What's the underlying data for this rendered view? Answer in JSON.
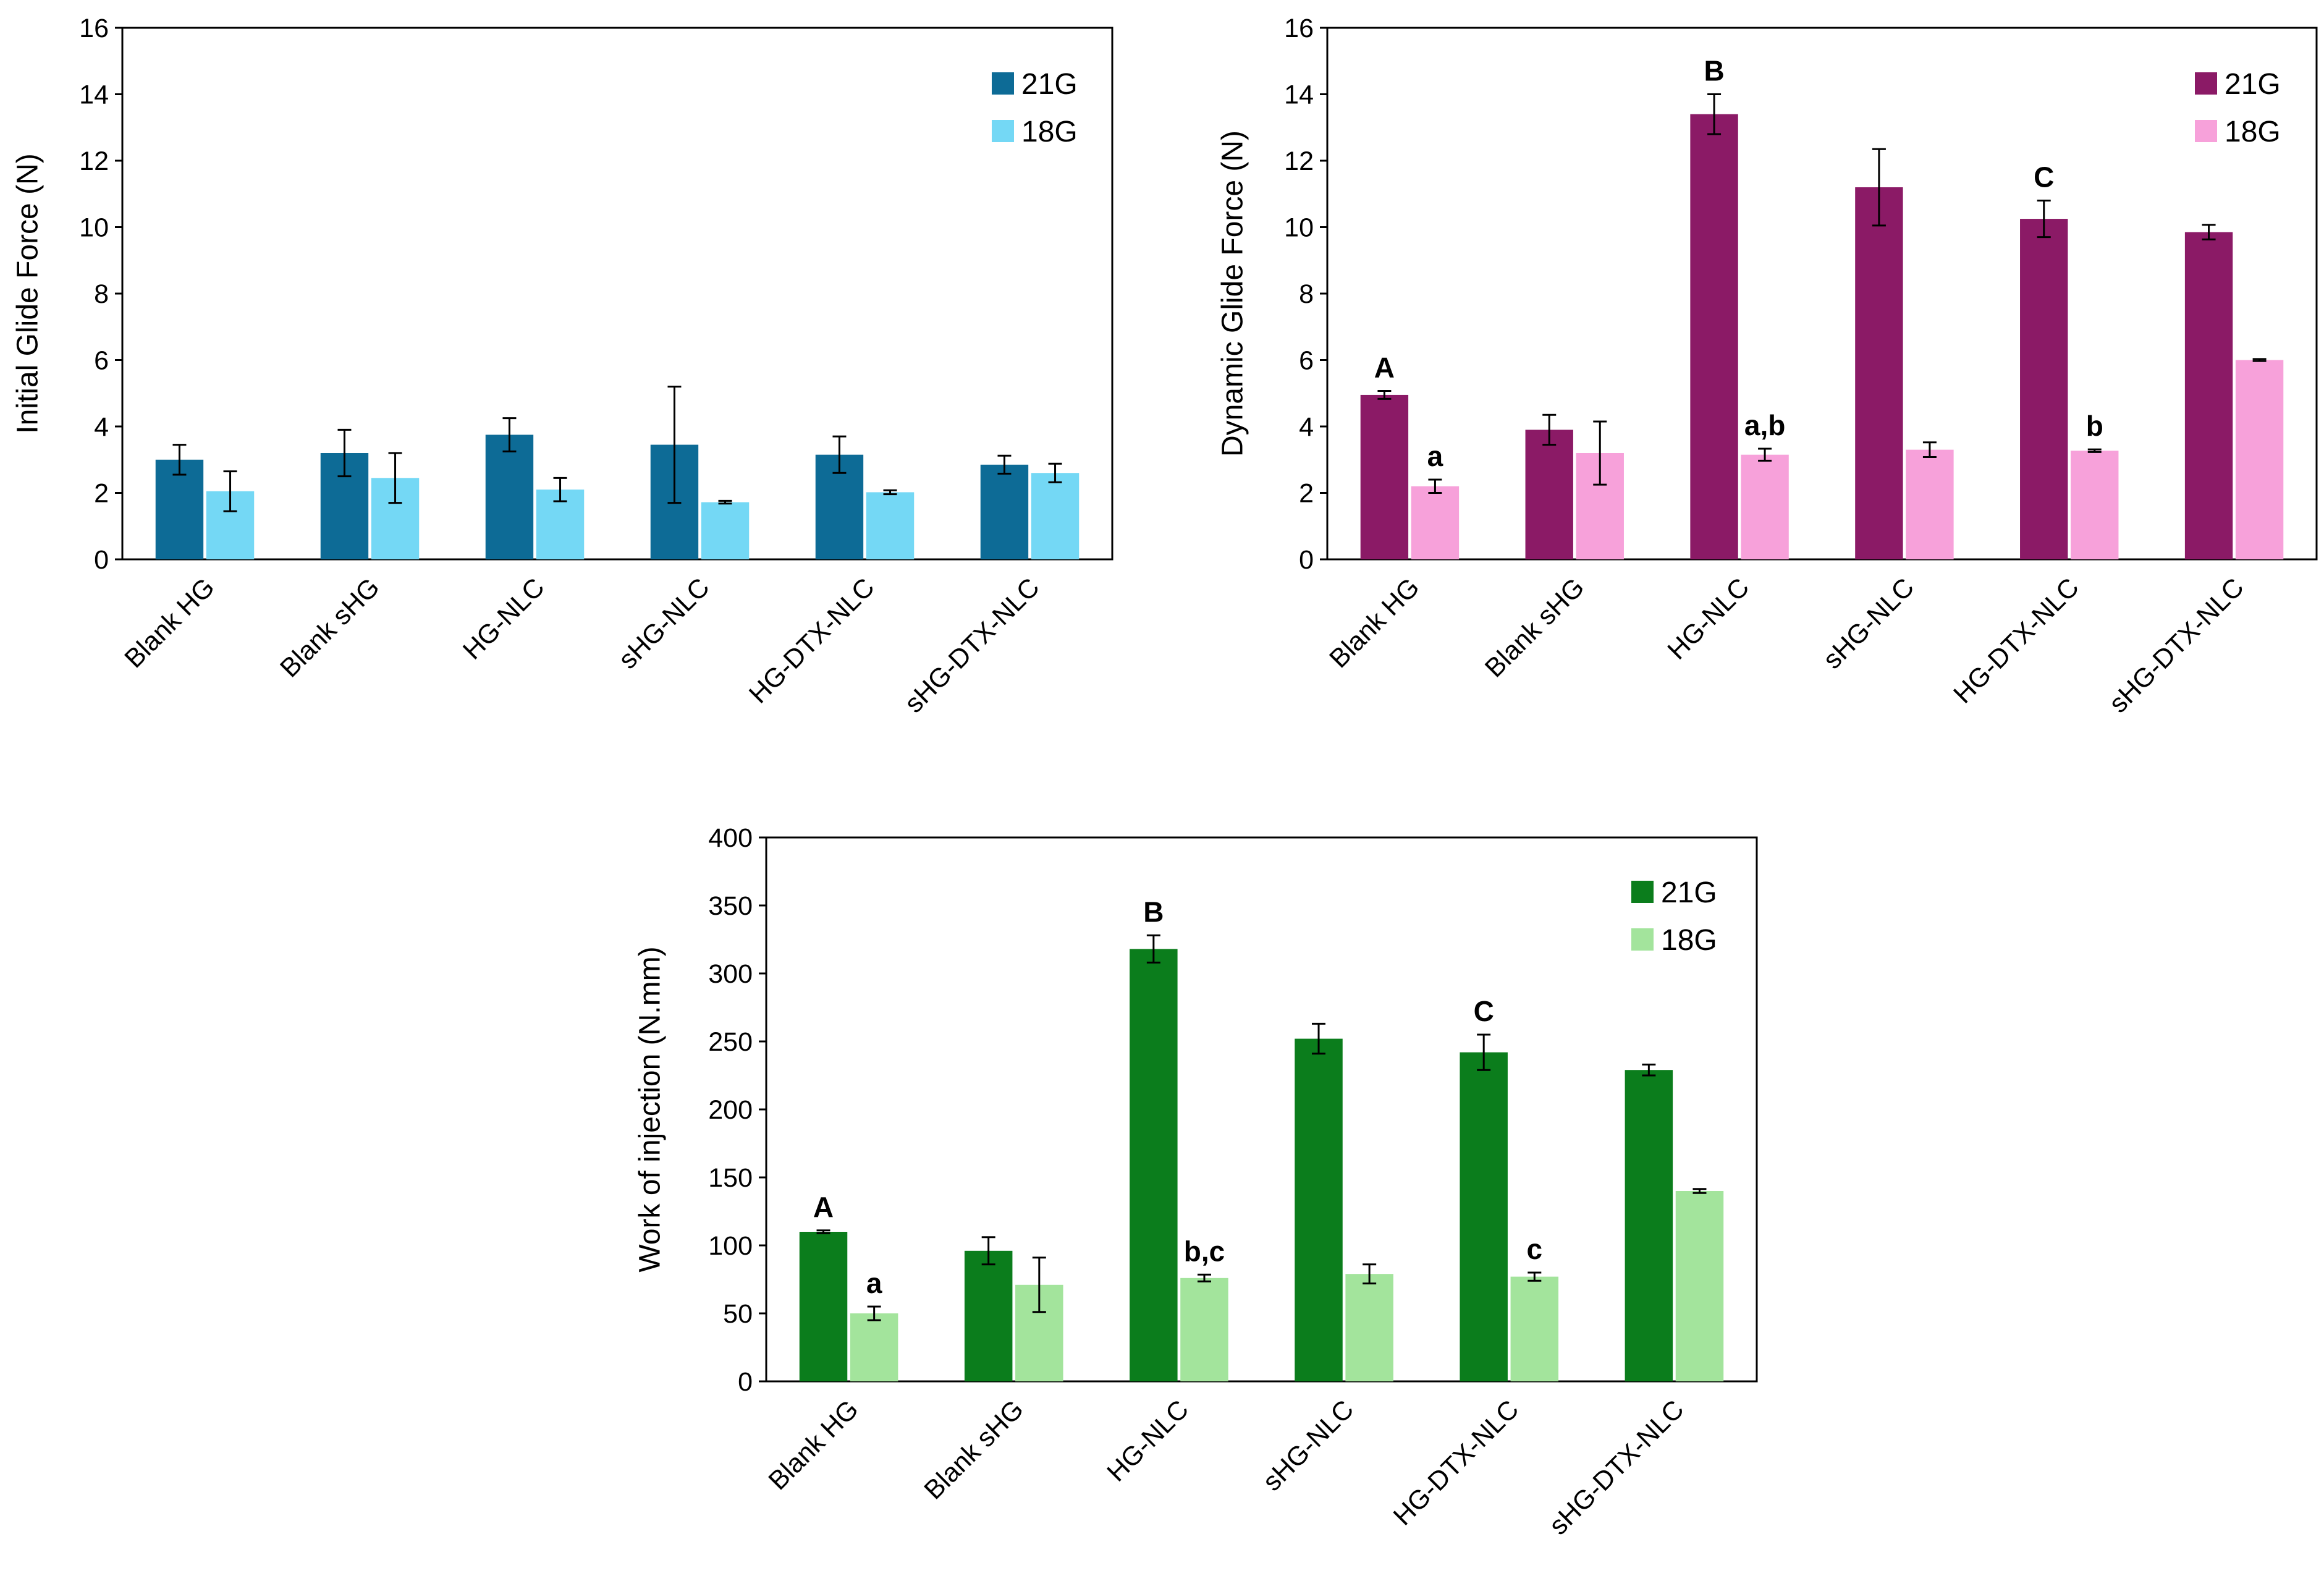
{
  "colors": {
    "chart1": {
      "21G": "#0d6b96",
      "18G": "#74d8f5"
    },
    "chart2": {
      "21G": "#8b1a66",
      "18G": "#f7a1da"
    },
    "chart3": {
      "21G": "#0b7d1c",
      "18G": "#a3e49c"
    }
  },
  "chart_data": [
    {
      "type": "bar",
      "title": "",
      "xlabel": "",
      "ylabel": "Initial Glide Force (N)",
      "ylim": [
        0,
        16
      ],
      "yticks": [
        0,
        2,
        4,
        6,
        8,
        10,
        12,
        14,
        16
      ],
      "grid": false,
      "legend_position": "top-right",
      "categories": [
        "Blank HG",
        "Blank sHG",
        "HG-NLC",
        "sHG-NLC",
        "HG-DTX-NLC",
        "sHG-DTX-NLC"
      ],
      "series": [
        {
          "name": "21G",
          "values": [
            3.0,
            3.2,
            3.75,
            3.45,
            3.15,
            2.85
          ],
          "errors": [
            0.45,
            0.7,
            0.5,
            1.75,
            0.55,
            0.27
          ],
          "labels": [
            "",
            "",
            "",
            "",
            "",
            ""
          ]
        },
        {
          "name": "18G",
          "values": [
            2.05,
            2.45,
            2.1,
            1.72,
            2.02,
            2.6
          ],
          "errors": [
            0.6,
            0.75,
            0.35,
            0.04,
            0.06,
            0.28
          ],
          "labels": [
            "",
            "",
            "",
            "",
            "",
            ""
          ]
        }
      ]
    },
    {
      "type": "bar",
      "title": "",
      "xlabel": "",
      "ylabel": "Dynamic Glide Force (N)",
      "ylim": [
        0,
        16
      ],
      "yticks": [
        0,
        2,
        4,
        6,
        8,
        10,
        12,
        14,
        16
      ],
      "grid": false,
      "legend_position": "top-right",
      "categories": [
        "Blank HG",
        "Blank sHG",
        "HG-NLC",
        "sHG-NLC",
        "HG-DTX-NLC",
        "sHG-DTX-NLC"
      ],
      "series": [
        {
          "name": "21G",
          "values": [
            4.95,
            3.9,
            13.4,
            11.2,
            10.25,
            9.85
          ],
          "errors": [
            0.12,
            0.45,
            0.6,
            1.15,
            0.55,
            0.22
          ],
          "labels": [
            "A",
            "",
            "B",
            "",
            "C",
            ""
          ]
        },
        {
          "name": "18G",
          "values": [
            2.2,
            3.2,
            3.15,
            3.3,
            3.27,
            6.0
          ],
          "errors": [
            0.2,
            0.95,
            0.18,
            0.22,
            0.04,
            0.03
          ],
          "labels": [
            "a",
            "",
            "a,b",
            "",
            "b",
            ""
          ]
        }
      ]
    },
    {
      "type": "bar",
      "title": "",
      "xlabel": "",
      "ylabel": "Work of injection (N.mm)",
      "ylim": [
        0,
        400
      ],
      "yticks": [
        0,
        50,
        100,
        150,
        200,
        250,
        300,
        350,
        400
      ],
      "grid": false,
      "legend_position": "top-right",
      "categories": [
        "Blank HG",
        "Blank sHG",
        "HG-NLC",
        "sHG-NLC",
        "HG-DTX-NLC",
        "sHG-DTX-NLC"
      ],
      "series": [
        {
          "name": "21G",
          "values": [
            110,
            96,
            318,
            252,
            242,
            229
          ],
          "errors": [
            1,
            10,
            10,
            11,
            13,
            4
          ],
          "labels": [
            "A",
            "",
            "B",
            "",
            "C",
            ""
          ]
        },
        {
          "name": "18G",
          "values": [
            50,
            71,
            76,
            79,
            77,
            140
          ],
          "errors": [
            5,
            20,
            2.5,
            7,
            3,
            1.5
          ],
          "labels": [
            "a",
            "",
            "b,c",
            "",
            "c",
            ""
          ]
        }
      ]
    }
  ]
}
